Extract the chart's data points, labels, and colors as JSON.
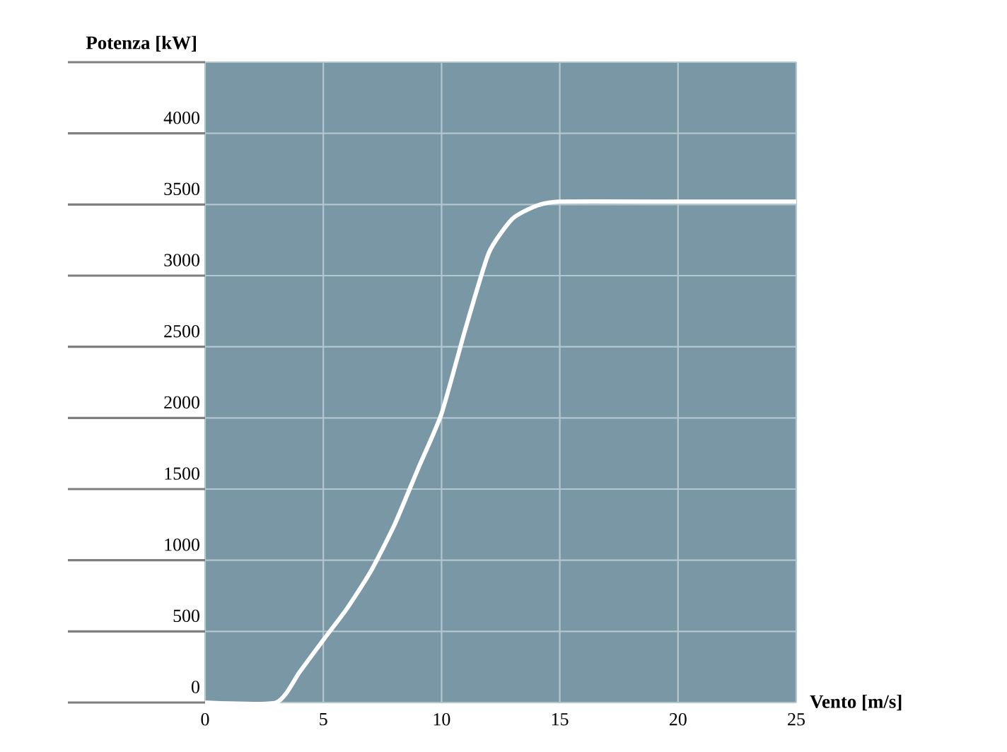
{
  "chart_data": {
    "type": "line",
    "xlabel": "Vento [m/s]",
    "ylabel": "Potenza [kW]",
    "xlim": [
      0,
      25
    ],
    "xticks": [
      0,
      5,
      10,
      15,
      20,
      25
    ],
    "ylim": [
      0,
      4500
    ],
    "yticks": [
      0,
      500,
      1000,
      1500,
      2000,
      2500,
      3000,
      3500,
      4000,
      {
        "value": 4500,
        "label": null
      }
    ],
    "grid": true,
    "marker": "none",
    "line_style": "solid",
    "series": [
      {
        "color": "#ffffff",
        "x": [
          0,
          3,
          4,
          5,
          6,
          7,
          8,
          9,
          10,
          11,
          12,
          13,
          14,
          15,
          20,
          25
        ],
        "values": [
          0,
          0,
          215,
          440,
          660,
          920,
          1245,
          1640,
          2030,
          2620,
          3160,
          3400,
          3490,
          3520,
          3520,
          3520
        ]
      }
    ]
  }
}
